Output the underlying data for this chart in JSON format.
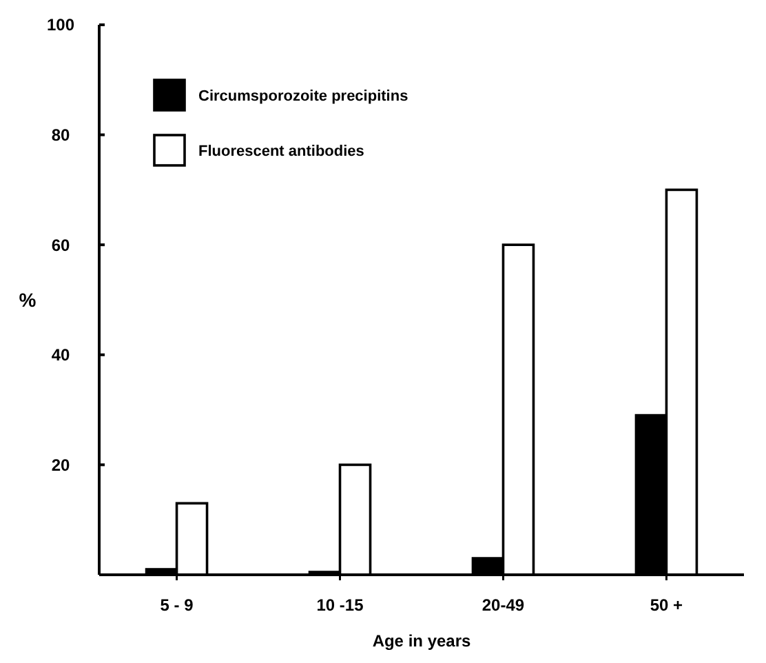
{
  "chart_data": {
    "type": "bar",
    "xlabel": "Age in years",
    "ylabel": "%",
    "categories": [
      "5 - 9",
      "10 -15",
      "20-49",
      "50 +"
    ],
    "series": [
      {
        "name": "Circumsporozoite precipitins",
        "color": "#000000",
        "values": [
          1,
          0.5,
          3,
          29
        ]
      },
      {
        "name": "Fluorescent antibodies",
        "color": "#ffffff",
        "values": [
          13,
          20,
          60,
          70
        ]
      }
    ],
    "ylim": [
      0,
      100
    ],
    "yticks": [
      20,
      40,
      60,
      80,
      100
    ],
    "grid": false,
    "legend": "top left"
  }
}
